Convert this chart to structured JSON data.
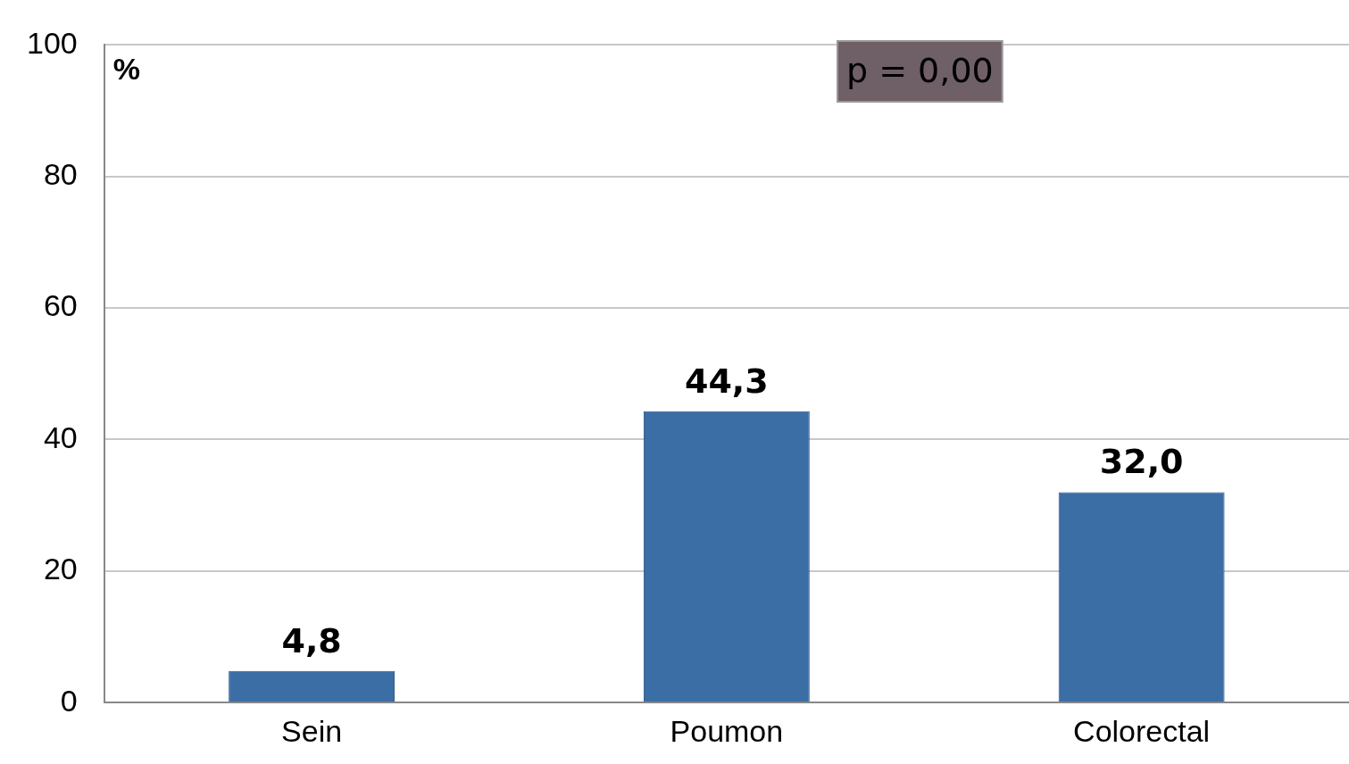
{
  "chart_data": {
    "type": "bar",
    "ylabel": "%",
    "categories": [
      "Sein",
      "Poumon",
      "Colorectal"
    ],
    "values": [
      4.8,
      44.3,
      32.0
    ],
    "color": "#3a6ea5",
    "value_labels": [
      "4,8",
      "44,3",
      "32,0"
    ],
    "ylim": [
      0,
      100
    ],
    "yticks": [
      0,
      20,
      40,
      60,
      80,
      100
    ],
    "grid": "y",
    "legend": false,
    "annotations": [
      "p = 0,00"
    ]
  }
}
